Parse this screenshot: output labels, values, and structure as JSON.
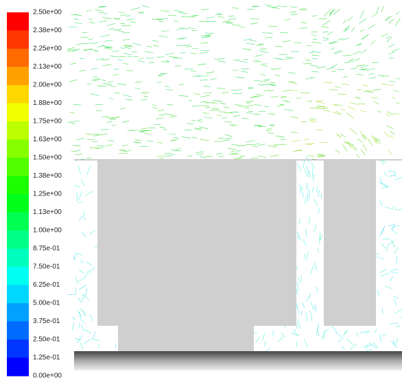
{
  "colorbar": {
    "labels": [
      "2.50e+00",
      "2.38e+00",
      "2.25e+00",
      "2.13e+00",
      "2.00e+00",
      "1.88e+00",
      "1.75e+00",
      "1.63e+00",
      "1.50e+00",
      "1.38e+00",
      "1.25e+00",
      "1.13e+00",
      "1.00e+00",
      "8.75e-01",
      "7.50e-01",
      "6.25e-01",
      "5.00e-01",
      "3.75e-01",
      "2.50e-01",
      "1.25e-01",
      "0.00e+00"
    ]
  }
}
